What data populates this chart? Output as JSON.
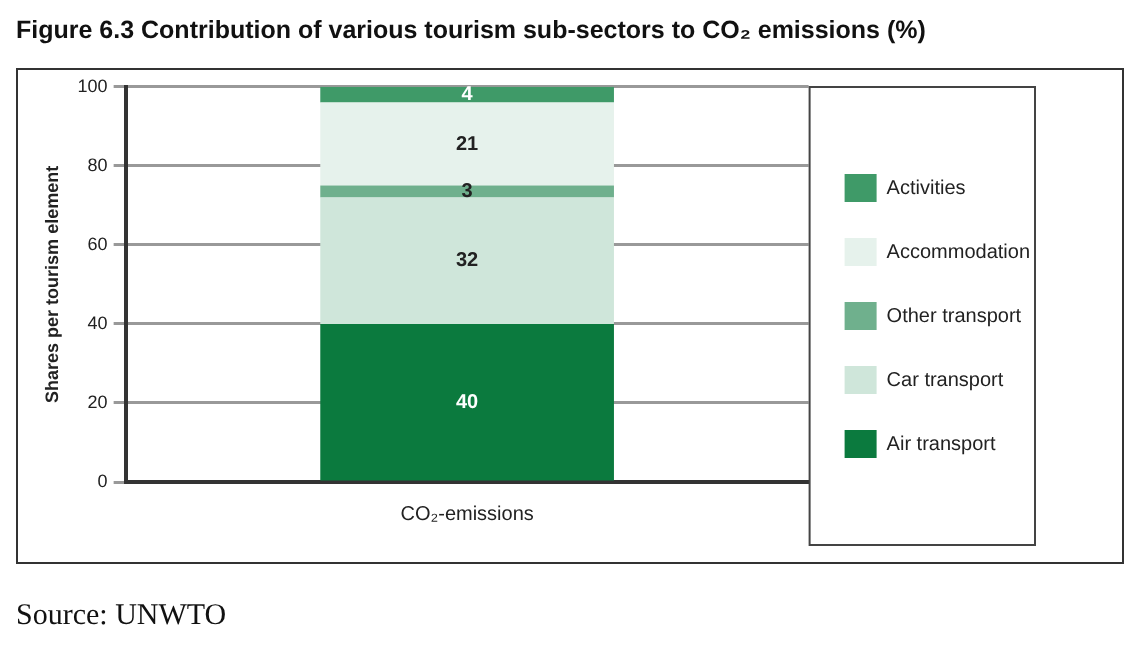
{
  "chart_data": {
    "type": "bar",
    "title": "Figure 6.3  Contribution of various tourism sub-sectors to CO₂ emissions  (%)",
    "ylabel": "Shares per tourism element",
    "categories": [
      "CO₂-emissions"
    ],
    "stacked": true,
    "series": [
      {
        "name": "Air transport",
        "color": "#0b7a3e",
        "values": [
          40
        ]
      },
      {
        "name": "Car transport",
        "color": "#cfe6da",
        "values": [
          32
        ]
      },
      {
        "name": "Other transport",
        "color": "#6fb08d",
        "values": [
          3
        ]
      },
      {
        "name": "Accommodation",
        "color": "#e6f2ec",
        "values": [
          21
        ]
      },
      {
        "name": "Activities",
        "color": "#3f9a68",
        "values": [
          4
        ]
      }
    ],
    "ylim": [
      0,
      100
    ],
    "yticks": [
      0,
      20,
      40,
      60,
      80,
      100
    ],
    "grid": "y",
    "legend": "right",
    "data_labels": true,
    "annotations": [
      "Source: UNWTO"
    ]
  }
}
